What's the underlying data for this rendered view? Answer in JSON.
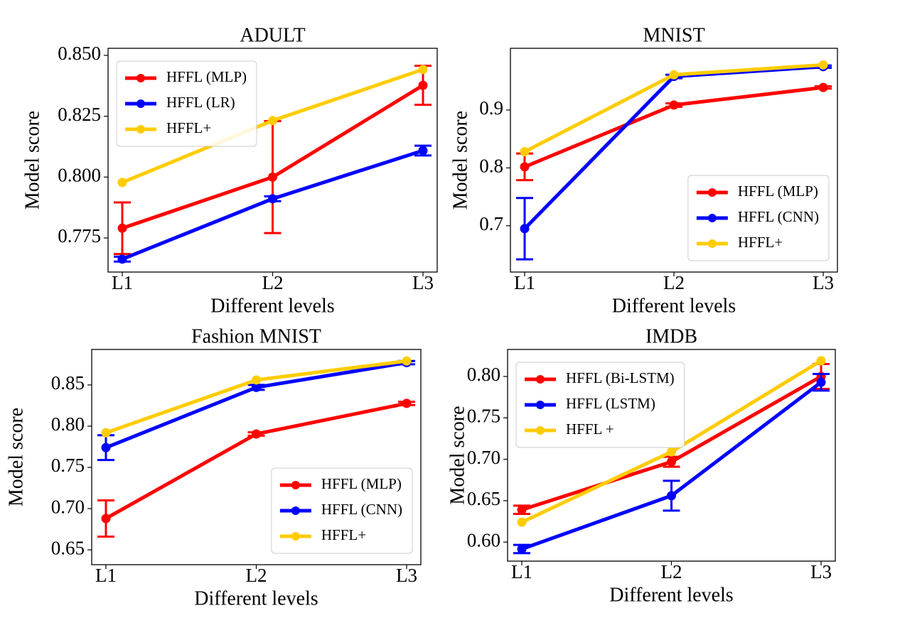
{
  "chart_data": [
    {
      "type": "line",
      "title": "ADULT",
      "x_label": "Different levels",
      "y_label": "Model score",
      "categories": [
        "L1",
        "L2",
        "L3"
      ],
      "series": [
        {
          "name": "HFFL (MLP)",
          "color": "#ff0000",
          "values": [
            0.779,
            0.8,
            0.8377
          ],
          "errors": [
            0.0106,
            0.023,
            0.008
          ]
        },
        {
          "name": "HFFL (LR)",
          "color": "#0000ff",
          "values": [
            0.7663,
            0.7911,
            0.8109
          ],
          "errors": [
            0.001,
            0.001,
            0.002
          ]
        },
        {
          "name": "HFFL+",
          "color": "#ffcc00",
          "values": [
            0.7978,
            0.8232,
            0.8442
          ]
        }
      ],
      "ylim": [
        0.761,
        0.8529
      ],
      "yticks": [
        {
          "value": 0.775,
          "label": "0.775"
        },
        {
          "value": 0.8,
          "label": "0.800"
        },
        {
          "value": 0.825,
          "label": "0.825"
        },
        {
          "value": 0.85,
          "label": "0.850"
        }
      ],
      "legend": "upper left"
    },
    {
      "type": "line",
      "title": "MNIST",
      "x_label": "Different levels",
      "y_label": "Model score",
      "categories": [
        "L1",
        "L2",
        "L3"
      ],
      "series": [
        {
          "name": "HFFL (MLP)",
          "color": "#ff0000",
          "values": [
            0.8018,
            0.9086,
            0.939
          ],
          "errors": [
            0.023,
            0.003,
            0.002
          ]
        },
        {
          "name": "HFFL (CNN)",
          "color": "#0000ff",
          "values": [
            0.695,
            0.958,
            0.975
          ],
          "errors": [
            0.053,
            0.003,
            0.002
          ]
        },
        {
          "name": "HFFL+",
          "color": "#ffcc00",
          "values": [
            0.828,
            0.961,
            0.978
          ]
        }
      ],
      "ylim": [
        0.62,
        1.0067
      ],
      "yticks": [
        0.7,
        0.8,
        0.9
      ],
      "legend": "lower right"
    },
    {
      "type": "line",
      "title": "Fashion MNIST",
      "x_label": "Different levels",
      "y_label": "Model score",
      "categories": [
        "L1",
        "L2",
        "L3"
      ],
      "series": [
        {
          "name": "HFFL (MLP)",
          "color": "#ff0000",
          "values": [
            0.688,
            0.7905,
            0.8276
          ],
          "errors": [
            0.022,
            0.002,
            0.002
          ]
        },
        {
          "name": "HFFL (CNN)",
          "color": "#0000ff",
          "values": [
            0.774,
            0.847,
            0.877
          ],
          "errors": [
            0.015,
            0.003,
            0.002
          ]
        },
        {
          "name": "HFFL+",
          "color": "#ffcc00",
          "values": [
            0.792,
            0.856,
            0.879
          ]
        }
      ],
      "ylim": [
        0.632,
        0.893
      ],
      "yticks": [
        0.65,
        {
          "value": 0.7,
          "label": "0.70"
        },
        0.75,
        {
          "value": 0.8,
          "label": "0.80"
        },
        0.85
      ],
      "legend": "lower right"
    },
    {
      "type": "line",
      "title": "IMDB",
      "x_label": "Different levels",
      "y_label": "Model score",
      "categories": [
        "L1",
        "L2",
        "L3"
      ],
      "series": [
        {
          "name": "HFFL (Bi-LSTM)",
          "color": "#ff0000",
          "values": [
            0.639,
            0.697,
            0.8
          ],
          "errors": [
            0.005,
            0.006,
            0.015
          ]
        },
        {
          "name": "HFFL (LSTM)",
          "color": "#0000ff",
          "values": [
            0.5916,
            0.656,
            0.793
          ],
          "errors": [
            0.005,
            0.018,
            0.01
          ]
        },
        {
          "name": "HFFL +",
          "color": "#ffcc00",
          "values": [
            0.624,
            0.709,
            0.819
          ]
        }
      ],
      "ylim": [
        0.577,
        0.8326
      ],
      "yticks": [
        {
          "value": 0.6,
          "label": "0.60"
        },
        0.65,
        {
          "value": 0.7,
          "label": "0.70"
        },
        0.75,
        {
          "value": 0.8,
          "label": "0.80"
        }
      ],
      "legend": "upper left"
    }
  ]
}
